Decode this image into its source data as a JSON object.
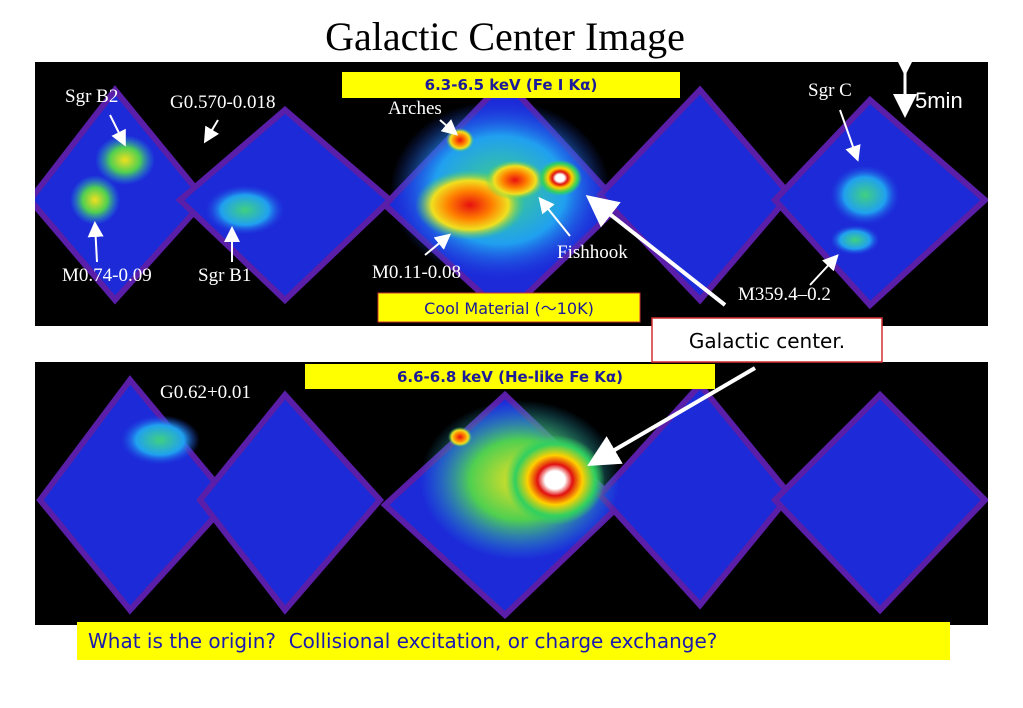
{
  "title": "Galactic Center Image",
  "scale_label": "5min",
  "callout": "Galactic center.",
  "question": "What is the origin?  Collisional excitation, or charge exchange?",
  "panels": [
    {
      "band": "6.3-6.5 keV (Fe I Kα)",
      "labels": [
        "Sgr B2",
        "G0.570-0.018",
        "Arches",
        "Sgr C",
        "M0.74-0.09",
        "Sgr B1",
        "M0.11-0.08",
        "Fishhook",
        "M359.4–0.2"
      ],
      "note": "Cool Material (～10K)"
    },
    {
      "band": "6.6-6.8 keV (He-like Fe Kα)",
      "labels": [
        "G0.62+0.01"
      ]
    }
  ]
}
